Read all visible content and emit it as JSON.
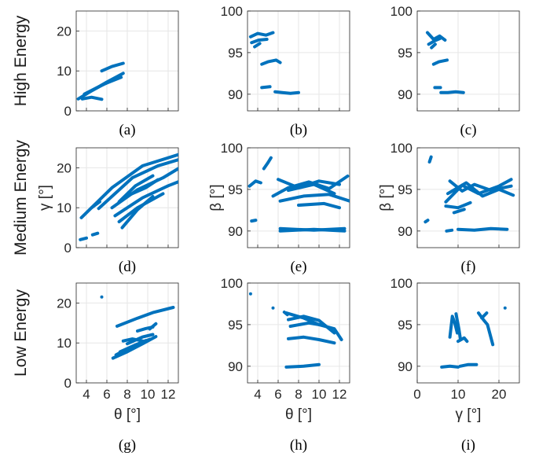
{
  "colors": {
    "series": "#0072bd",
    "grid": "#e6e6e6",
    "axis": "#262626"
  },
  "row_labels": [
    "High Energy",
    "Medium Energy",
    "Low Energy"
  ],
  "chart_data": [
    {
      "id": "a",
      "type": "scatter",
      "caption": "(a)",
      "xlim": [
        3,
        13
      ],
      "ylim": [
        0,
        25
      ],
      "xticks": [],
      "yticks": [
        0,
        10,
        20
      ],
      "xlabel": "",
      "ylabel": "",
      "segments": [
        [
          [
            3.2,
            3.0
          ],
          [
            4.5,
            5.0
          ],
          [
            6.0,
            7.2
          ],
          [
            7.6,
            9.4
          ]
        ],
        [
          [
            3.8,
            4.2
          ],
          [
            5.4,
            6.3
          ],
          [
            7.0,
            8.2
          ]
        ],
        [
          [
            4.2,
            4.6
          ],
          [
            5.8,
            6.8
          ],
          [
            7.4,
            8.4
          ]
        ],
        [
          [
            3.6,
            3.0
          ],
          [
            4.5,
            3.4
          ],
          [
            5.5,
            2.9
          ]
        ],
        [
          [
            5.5,
            10.0
          ],
          [
            6.5,
            11.1
          ],
          [
            7.6,
            11.9
          ]
        ]
      ],
      "points": []
    },
    {
      "id": "b",
      "type": "scatter",
      "caption": "(b)",
      "xlim": [
        3,
        13
      ],
      "ylim": [
        88,
        100
      ],
      "xticks": [],
      "yticks": [
        90,
        95,
        100
      ],
      "xlabel": "",
      "ylabel": "",
      "segments": [
        [
          [
            3.3,
            96.9
          ],
          [
            4.0,
            97.3
          ],
          [
            4.8,
            97.1
          ],
          [
            5.5,
            97.4
          ]
        ],
        [
          [
            3.4,
            96.2
          ],
          [
            4.1,
            96.5
          ],
          [
            4.9,
            96.6
          ]
        ],
        [
          [
            3.7,
            95.7
          ],
          [
            4.2,
            96.1
          ]
        ],
        [
          [
            4.4,
            93.6
          ],
          [
            5.0,
            93.9
          ],
          [
            5.8,
            94.1
          ],
          [
            6.2,
            93.8
          ]
        ],
        [
          [
            4.4,
            90.8
          ],
          [
            5.2,
            90.9
          ]
        ],
        [
          [
            5.7,
            90.3
          ],
          [
            6.4,
            90.2
          ],
          [
            7.2,
            90.1
          ],
          [
            8.0,
            90.2
          ]
        ]
      ],
      "points": []
    },
    {
      "id": "c",
      "type": "scatter",
      "caption": "(c)",
      "xlim": [
        0,
        25
      ],
      "ylim": [
        88,
        100
      ],
      "xticks": [],
      "yticks": [
        90,
        95,
        100
      ],
      "xlabel": "",
      "ylabel": "",
      "segments": [
        [
          [
            2.5,
            97.4
          ],
          [
            4.0,
            96.6
          ],
          [
            5.5,
            97.0
          ],
          [
            6.8,
            96.5
          ]
        ],
        [
          [
            2.8,
            96.0
          ],
          [
            4.2,
            96.4
          ],
          [
            5.6,
            96.7
          ]
        ],
        [
          [
            3.5,
            95.6
          ],
          [
            4.4,
            96.0
          ]
        ],
        [
          [
            4.0,
            93.6
          ],
          [
            5.3,
            93.9
          ],
          [
            7.3,
            94.1
          ]
        ],
        [
          [
            4.3,
            90.8
          ],
          [
            5.7,
            90.8
          ]
        ],
        [
          [
            5.8,
            90.2
          ],
          [
            7.5,
            90.2
          ],
          [
            9.4,
            90.3
          ],
          [
            11.3,
            90.2
          ]
        ]
      ],
      "points": []
    },
    {
      "id": "d",
      "type": "scatter",
      "caption": "(d)",
      "xlim": [
        3,
        13
      ],
      "ylim": [
        0,
        25
      ],
      "xticks": [],
      "yticks": [
        0,
        10,
        20
      ],
      "xlabel": "",
      "ylabel": "γ [°]",
      "segments": [
        [
          [
            3.5,
            7.5
          ],
          [
            6.5,
            15.0
          ],
          [
            9.5,
            20.5
          ],
          [
            13.0,
            23.3
          ]
        ],
        [
          [
            5.2,
            9.8
          ],
          [
            8.5,
            17.5
          ],
          [
            11.0,
            20.5
          ],
          [
            13.0,
            22.0
          ]
        ],
        [
          [
            6.5,
            10.0
          ],
          [
            9.0,
            14.5
          ],
          [
            11.5,
            17.5
          ],
          [
            13.0,
            19.8
          ]
        ],
        [
          [
            6.8,
            8.0
          ],
          [
            9.5,
            12.5
          ],
          [
            12.0,
            15.5
          ],
          [
            13.0,
            16.5
          ]
        ],
        [
          [
            7.2,
            6.5
          ],
          [
            9.0,
            10.0
          ],
          [
            11.5,
            13.5
          ]
        ],
        [
          [
            7.5,
            5.0
          ],
          [
            9.0,
            9.5
          ],
          [
            10.5,
            12.8
          ]
        ],
        [
          [
            7.2,
            11.5
          ],
          [
            8.8,
            15.5
          ],
          [
            10.5,
            18.0
          ]
        ],
        [
          [
            8.0,
            13.0
          ],
          [
            9.8,
            15.0
          ],
          [
            11.0,
            17.0
          ]
        ],
        [
          [
            4.5,
            10.0
          ],
          [
            5.3,
            11.5
          ]
        ],
        [
          [
            3.4,
            2.0
          ],
          [
            4.0,
            2.4
          ]
        ],
        [
          [
            4.6,
            3.2
          ],
          [
            5.1,
            3.6
          ]
        ]
      ],
      "points": []
    },
    {
      "id": "e",
      "type": "scatter",
      "caption": "(e)",
      "xlim": [
        3,
        13
      ],
      "ylim": [
        88,
        100
      ],
      "xticks": [],
      "yticks": [
        90,
        95,
        100
      ],
      "xlabel": "",
      "ylabel": "β [°]",
      "segments": [
        [
          [
            3.2,
            95.4
          ],
          [
            3.8,
            96.0
          ],
          [
            4.3,
            95.8
          ]
        ],
        [
          [
            4.6,
            97.5
          ],
          [
            5.0,
            98.2
          ],
          [
            5.3,
            98.8
          ]
        ],
        [
          [
            3.4,
            91.2
          ],
          [
            3.8,
            91.3
          ]
        ],
        [
          [
            5.5,
            94.2
          ],
          [
            7.0,
            95.2
          ],
          [
            9.0,
            95.9
          ],
          [
            11.0,
            95.1
          ],
          [
            12.8,
            96.6
          ]
        ],
        [
          [
            6.0,
            96.2
          ],
          [
            8.0,
            95.2
          ],
          [
            10.0,
            96.0
          ],
          [
            12.0,
            95.6
          ]
        ],
        [
          [
            6.2,
            93.6
          ],
          [
            8.5,
            94.2
          ],
          [
            11.0,
            94.4
          ],
          [
            13.0,
            93.6
          ]
        ],
        [
          [
            7.0,
            94.9
          ],
          [
            9.5,
            95.6
          ],
          [
            11.5,
            94.5
          ]
        ],
        [
          [
            8.0,
            93.1
          ],
          [
            10.5,
            93.3
          ],
          [
            12.0,
            92.8
          ]
        ],
        [
          [
            6.2,
            90.0
          ],
          [
            9.5,
            90.2
          ],
          [
            12.5,
            90.0
          ]
        ],
        [
          [
            6.2,
            90.3
          ],
          [
            9.5,
            90.1
          ],
          [
            12.5,
            90.3
          ]
        ]
      ],
      "points": []
    },
    {
      "id": "f",
      "type": "scatter",
      "caption": "(f)",
      "xlim": [
        0,
        25
      ],
      "ylim": [
        88,
        100
      ],
      "xticks": [],
      "yticks": [
        90,
        95,
        100
      ],
      "xlabel": "",
      "ylabel": "β [°]",
      "segments": [
        [
          [
            3.0,
            98.3
          ],
          [
            3.4,
            98.9
          ]
        ],
        [
          [
            2.0,
            91.1
          ],
          [
            2.6,
            91.3
          ]
        ],
        [
          [
            7.0,
            93.5
          ],
          [
            11.0,
            95.5
          ],
          [
            15.0,
            94.5
          ],
          [
            20.0,
            95.4
          ],
          [
            23.0,
            96.2
          ]
        ],
        [
          [
            8.0,
            96.0
          ],
          [
            11.0,
            94.8
          ],
          [
            14.0,
            95.6
          ],
          [
            18.0,
            94.9
          ],
          [
            23.0,
            95.4
          ]
        ],
        [
          [
            7.5,
            94.5
          ],
          [
            12.0,
            95.8
          ],
          [
            16.0,
            94.2
          ],
          [
            20.0,
            95.0
          ],
          [
            23.5,
            94.3
          ]
        ],
        [
          [
            7.0,
            93.0
          ],
          [
            10.0,
            92.8
          ],
          [
            13.0,
            93.4
          ]
        ],
        [
          [
            9.0,
            92.2
          ],
          [
            11.5,
            92.6
          ]
        ],
        [
          [
            7.2,
            90.0
          ],
          [
            8.5,
            90.1
          ]
        ],
        [
          [
            10.0,
            90.2
          ],
          [
            14.0,
            90.1
          ],
          [
            18.0,
            90.3
          ],
          [
            22.0,
            90.2
          ]
        ]
      ],
      "points": []
    },
    {
      "id": "g",
      "type": "scatter",
      "caption": "(g)",
      "xlim": [
        3,
        13
      ],
      "ylim": [
        0,
        25
      ],
      "xticks": [
        4,
        6,
        8,
        10,
        12
      ],
      "yticks": [
        0,
        10,
        20
      ],
      "xlabel": "θ [°]",
      "ylabel": "",
      "segments": [
        [
          [
            7.0,
            14.2
          ],
          [
            9.0,
            16.2
          ],
          [
            10.5,
            17.6
          ],
          [
            12.5,
            18.9
          ]
        ],
        [
          [
            6.6,
            6.2
          ],
          [
            8.0,
            7.8
          ],
          [
            9.5,
            9.8
          ],
          [
            10.8,
            11.6
          ]
        ],
        [
          [
            6.9,
            7.0
          ],
          [
            8.2,
            8.8
          ],
          [
            9.8,
            10.6
          ]
        ],
        [
          [
            7.3,
            7.8
          ],
          [
            8.8,
            9.5
          ],
          [
            10.2,
            10.9
          ]
        ],
        [
          [
            7.6,
            10.5
          ],
          [
            8.5,
            11.0
          ],
          [
            9.5,
            10.5
          ]
        ],
        [
          [
            9.0,
            13.0
          ],
          [
            9.8,
            13.6
          ],
          [
            10.5,
            14.0
          ]
        ],
        [
          [
            8.0,
            9.8
          ],
          [
            9.5,
            11.5
          ],
          [
            10.5,
            12.1
          ]
        ],
        [
          [
            10.2,
            13.5
          ],
          [
            10.8,
            14.8
          ]
        ]
      ],
      "points": [
        [
          5.5,
          21.5
        ]
      ]
    },
    {
      "id": "h",
      "type": "scatter",
      "caption": "(h)",
      "xlim": [
        3,
        13
      ],
      "ylim": [
        88,
        100
      ],
      "xticks": [
        4,
        6,
        8,
        10,
        12
      ],
      "yticks": [
        90,
        95,
        100
      ],
      "xlabel": "θ [°]",
      "ylabel": "",
      "segments": [
        [
          [
            6.8,
            96.4
          ],
          [
            8.5,
            95.8
          ],
          [
            10.0,
            95.0
          ],
          [
            11.5,
            94.5
          ],
          [
            12.2,
            93.2
          ]
        ],
        [
          [
            7.0,
            95.6
          ],
          [
            8.5,
            96.0
          ],
          [
            10.0,
            95.5
          ],
          [
            11.5,
            94.0
          ]
        ],
        [
          [
            7.2,
            94.8
          ],
          [
            9.0,
            95.2
          ],
          [
            10.5,
            94.9
          ]
        ],
        [
          [
            7.0,
            93.3
          ],
          [
            8.5,
            93.5
          ],
          [
            10.0,
            93.2
          ],
          [
            11.5,
            92.8
          ]
        ],
        [
          [
            6.6,
            96.5
          ],
          [
            6.9,
            96.2
          ]
        ],
        [
          [
            6.8,
            89.9
          ],
          [
            8.5,
            90.0
          ],
          [
            10.0,
            90.2
          ]
        ]
      ],
      "points": [
        [
          3.3,
          98.7
        ],
        [
          5.5,
          97.0
        ]
      ]
    },
    {
      "id": "i",
      "type": "scatter",
      "caption": "(i)",
      "xlim": [
        0,
        25
      ],
      "ylim": [
        88,
        100
      ],
      "xticks": [
        0,
        10,
        20
      ],
      "yticks": [
        90,
        95,
        100
      ],
      "xlabel": "γ [°]",
      "ylabel": "",
      "segments": [
        [
          [
            8.0,
            93.5
          ],
          [
            8.6,
            96.0
          ],
          [
            9.2,
            95.2
          ],
          [
            9.8,
            94.0
          ]
        ],
        [
          [
            9.5,
            96.3
          ],
          [
            10.2,
            94.5
          ],
          [
            10.6,
            93.2
          ]
        ],
        [
          [
            10.0,
            93.0
          ],
          [
            11.5,
            93.4
          ],
          [
            12.2,
            93.0
          ]
        ],
        [
          [
            15.0,
            96.4
          ],
          [
            16.2,
            95.6
          ],
          [
            17.2,
            95.0
          ],
          [
            18.5,
            92.6
          ]
        ],
        [
          [
            15.8,
            95.8
          ],
          [
            17.0,
            96.4
          ]
        ],
        [
          [
            6.0,
            89.9
          ],
          [
            8.0,
            90.0
          ],
          [
            10.0,
            89.9
          ]
        ],
        [
          [
            10.5,
            90.0
          ],
          [
            12.5,
            90.2
          ],
          [
            14.5,
            90.2
          ]
        ]
      ],
      "points": [
        [
          21.5,
          97.0
        ]
      ]
    }
  ]
}
